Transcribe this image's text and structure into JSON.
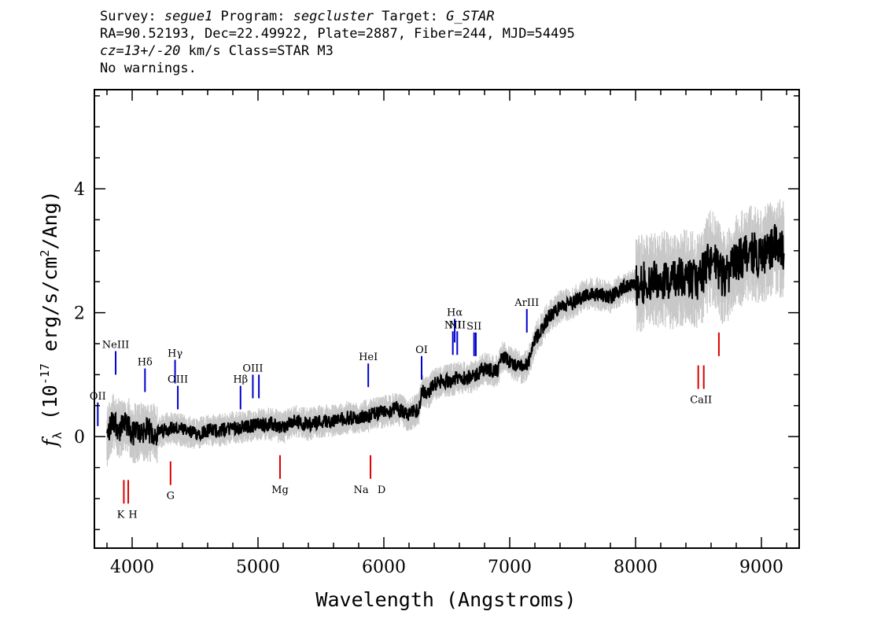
{
  "header": {
    "line1": {
      "survey_label": "Survey: ",
      "survey_value": "segue1",
      "program_label": " Program: ",
      "program_value": "segcluster",
      "target_label": " Target: ",
      "target_value": "G_STAR"
    },
    "line2": "RA=90.52193, Dec=22.49922, Plate=2887, Fiber=244, MJD=54495",
    "line3": {
      "cz_label": "cz",
      "cz_value": "=13+/-20",
      "rest": " km/s Class=STAR M3"
    },
    "line4": "No warnings."
  },
  "chart_data": {
    "type": "line",
    "xlabel": "Wavelength (Angstroms)",
    "ylabel_prefix": "f",
    "ylabel_subscript": "λ",
    "ylabel_open": " (10",
    "ylabel_exponent": "-17",
    "ylabel_mid": " erg/s/cm",
    "ylabel_exponent2": "2",
    "ylabel_close": "/Ang)",
    "xlim": [
      3700,
      9300
    ],
    "ylim": [
      -1.8,
      5.6
    ],
    "x_ticks": [
      4000,
      5000,
      6000,
      7000,
      8000,
      9000
    ],
    "y_ticks": [
      0,
      2,
      4
    ],
    "grid": false,
    "colors": {
      "flux": "#000000",
      "error_band": "#c8c8c8",
      "emission_marker": "#0000cc",
      "absorption_marker": "#dd0000"
    },
    "series": [
      {
        "style": "black",
        "x": [
          3800,
          3850,
          3900,
          3950,
          4000,
          4100,
          4200,
          4300,
          4400,
          4500,
          4600,
          4700,
          4800,
          4900,
          5000,
          5100,
          5200,
          5300,
          5400,
          5500,
          5600,
          5700,
          5800,
          5900,
          6000,
          6100,
          6200,
          6280,
          6300,
          6350,
          6400,
          6500,
          6600,
          6700,
          6800,
          6900,
          6950,
          7000,
          7100,
          7150,
          7200,
          7300,
          7400,
          7500,
          7600,
          7700,
          7800,
          7900,
          8000,
          8100,
          8200,
          8300,
          8400,
          8500,
          8600,
          8700,
          8800,
          8900,
          9000,
          9100,
          9180
        ],
        "y": [
          0.0,
          0.3,
          0.1,
          0.2,
          0.05,
          0.1,
          0.05,
          0.15,
          0.1,
          0.05,
          0.1,
          0.1,
          0.15,
          0.15,
          0.2,
          0.2,
          0.15,
          0.25,
          0.2,
          0.25,
          0.25,
          0.3,
          0.3,
          0.35,
          0.4,
          0.45,
          0.35,
          0.45,
          0.75,
          0.7,
          0.85,
          0.9,
          0.95,
          0.95,
          1.1,
          1.05,
          1.3,
          1.2,
          1.1,
          1.2,
          1.55,
          1.9,
          2.1,
          2.15,
          2.3,
          2.3,
          2.25,
          2.4,
          2.45,
          2.5,
          2.55,
          2.5,
          2.6,
          2.5,
          2.9,
          2.55,
          2.8,
          3.0,
          2.9,
          3.1,
          3.0
        ]
      }
    ],
    "lines": {
      "emission": [
        {
          "label": "OII",
          "wave": 3727,
          "y": 0.55
        },
        {
          "label": "NeIII",
          "wave": 3869,
          "y": 1.38
        },
        {
          "label": "Hδ",
          "wave": 4102,
          "y": 1.1
        },
        {
          "label": "Hγ",
          "wave": 4341,
          "y": 1.24
        },
        {
          "label": "OIII",
          "wave": 4363,
          "y": 0.82
        },
        {
          "label": "Hβ",
          "wave": 4861,
          "y": 0.82
        },
        {
          "label": "OIII",
          "wave": 4959,
          "y": 1.0
        },
        {
          "label": "OIII",
          "wave": 5007,
          "y": 1.0
        },
        {
          "label": "HeI",
          "wave": 5876,
          "y": 1.18
        },
        {
          "label": "OI",
          "wave": 6300,
          "y": 1.3
        },
        {
          "label": "NII",
          "wave": 6548,
          "y": 1.7
        },
        {
          "label": "Hα",
          "wave": 6563,
          "y": 1.9
        },
        {
          "label": "NII",
          "wave": 6583,
          "y": 1.7
        },
        {
          "label": "SII",
          "wave": 6717,
          "y": 1.68
        },
        {
          "label": "SII",
          "wave": 6731,
          "y": 1.68
        },
        {
          "label": "ArIII",
          "wave": 7136,
          "y": 2.06
        }
      ],
      "absorption": [
        {
          "label": "K",
          "wave": 3934,
          "y": -0.7
        },
        {
          "label": "H",
          "wave": 3969,
          "y": -0.7
        },
        {
          "label": "G",
          "wave": 4305,
          "y": -0.4
        },
        {
          "label": "Mg",
          "wave": 5175,
          "y": -0.3
        },
        {
          "label": "Na",
          "wave": 5894,
          "y": -0.3
        },
        {
          "label": "D",
          "wave": 5894,
          "y": -0.3
        },
        {
          "label": "CaII",
          "wave": 8498,
          "y": 1.15
        },
        {
          "label": "CaII",
          "wave": 8542,
          "y": 1.15
        },
        {
          "label": "CaII",
          "wave": 8662,
          "y": 1.68
        }
      ]
    }
  }
}
